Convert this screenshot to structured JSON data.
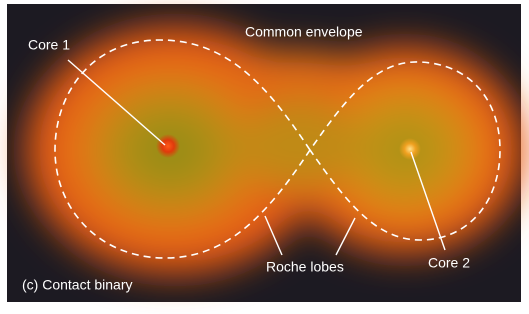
{
  "diagram": {
    "labels": {
      "core_1": "Core 1",
      "common_envelope": "Common envelope",
      "core_2": "Core 2",
      "roche_lobes": "Roche lobes",
      "caption": "(c) Contact binary"
    }
  }
}
